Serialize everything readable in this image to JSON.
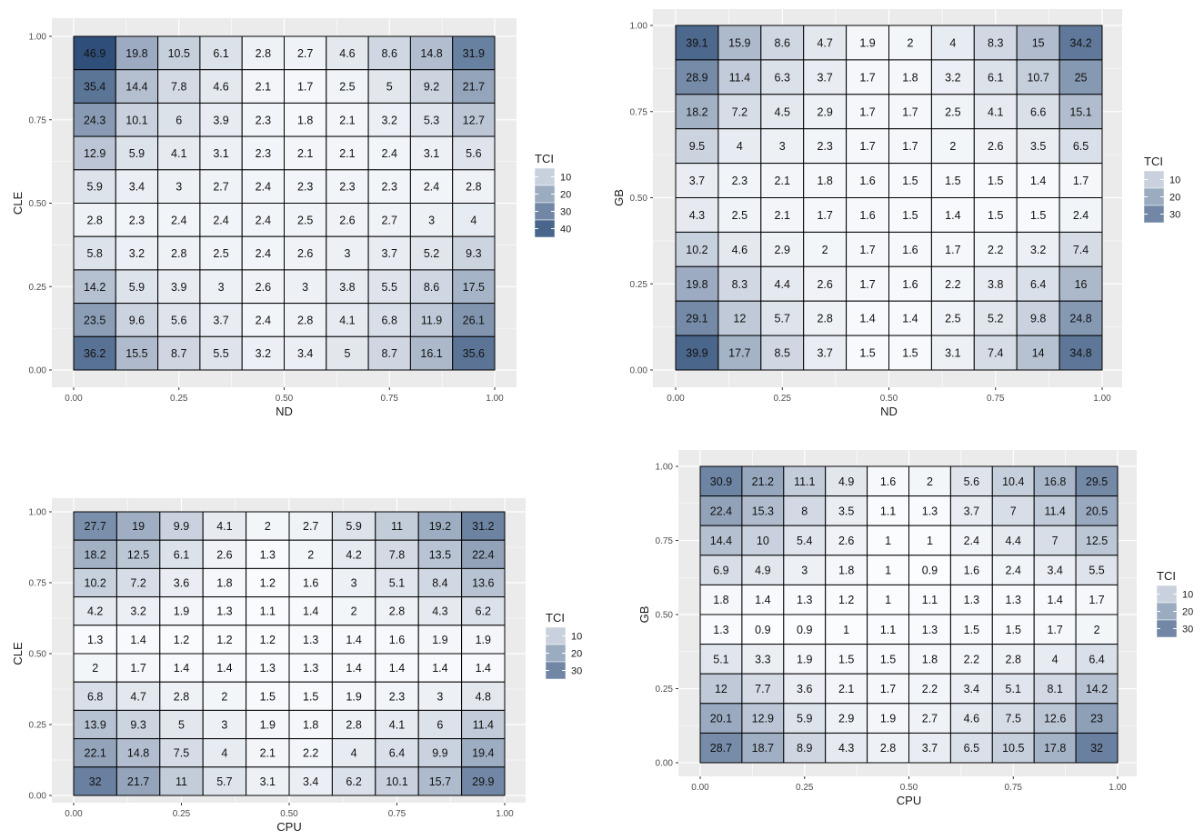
{
  "chart_data": [
    {
      "type": "heatmap",
      "xlabel": "ND",
      "ylabel": "CLE",
      "xlim": [
        0,
        1
      ],
      "ylim": [
        0,
        1
      ],
      "x_ticks": [
        "0.00",
        "0.25",
        "0.50",
        "0.75",
        "1.00"
      ],
      "y_ticks": [
        "0.00",
        "0.25",
        "0.50",
        "0.75",
        "1.00"
      ],
      "legend": {
        "title": "TCI",
        "breaks": [
          "10",
          "20",
          "30",
          "40"
        ],
        "position": "right"
      },
      "values": [
        [
          46.9,
          19.8,
          10.5,
          6.1,
          2.8,
          2.7,
          4.6,
          8.6,
          14.8,
          31.9
        ],
        [
          35.4,
          14.4,
          7.8,
          4.6,
          2.1,
          1.7,
          2.5,
          5,
          9.2,
          21.7
        ],
        [
          24.3,
          10.1,
          6,
          3.9,
          2.3,
          1.8,
          2.1,
          3.2,
          5.3,
          12.7
        ],
        [
          12.9,
          5.9,
          4.1,
          3.1,
          2.3,
          2.1,
          2.1,
          2.4,
          3.1,
          5.6
        ],
        [
          5.9,
          3.4,
          3,
          2.7,
          2.4,
          2.3,
          2.3,
          2.3,
          2.4,
          2.8
        ],
        [
          2.8,
          2.3,
          2.4,
          2.4,
          2.4,
          2.5,
          2.6,
          2.7,
          3,
          4
        ],
        [
          5.8,
          3.2,
          2.8,
          2.5,
          2.4,
          2.6,
          3,
          3.7,
          5.2,
          9.3
        ],
        [
          14.2,
          5.9,
          3.9,
          3,
          2.6,
          3,
          3.8,
          5.5,
          8.6,
          17.5
        ],
        [
          23.5,
          9.6,
          5.6,
          3.7,
          2.4,
          2.8,
          4.1,
          6.8,
          11.9,
          26.1
        ],
        [
          36.2,
          15.5,
          8.7,
          5.5,
          3.2,
          3.4,
          5,
          8.7,
          16.1,
          35.6
        ]
      ]
    },
    {
      "type": "heatmap",
      "xlabel": "ND",
      "ylabel": "GB",
      "xlim": [
        0,
        1
      ],
      "ylim": [
        0,
        1
      ],
      "x_ticks": [
        "0.00",
        "0.25",
        "0.50",
        "0.75",
        "1.00"
      ],
      "y_ticks": [
        "0.00",
        "0.25",
        "0.50",
        "0.75",
        "1.00"
      ],
      "legend": {
        "title": "TCI",
        "breaks": [
          "10",
          "20",
          "30"
        ],
        "position": "right"
      },
      "values": [
        [
          39.1,
          15.9,
          8.6,
          4.7,
          1.9,
          2,
          4,
          8.3,
          15,
          34.2
        ],
        [
          28.9,
          11.4,
          6.3,
          3.7,
          1.7,
          1.8,
          3.2,
          6.1,
          10.7,
          25
        ],
        [
          18.2,
          7.2,
          4.5,
          2.9,
          1.7,
          1.7,
          2.5,
          4.1,
          6.6,
          15.1
        ],
        [
          9.5,
          4,
          3,
          2.3,
          1.7,
          1.7,
          2,
          2.6,
          3.5,
          6.5
        ],
        [
          3.7,
          2.3,
          2.1,
          1.8,
          1.6,
          1.5,
          1.5,
          1.5,
          1.4,
          1.7
        ],
        [
          4.3,
          2.5,
          2.1,
          1.7,
          1.6,
          1.5,
          1.4,
          1.5,
          1.5,
          2.4
        ],
        [
          10.2,
          4.6,
          2.9,
          2,
          1.7,
          1.6,
          1.7,
          2.2,
          3.2,
          7.4
        ],
        [
          19.8,
          8.3,
          4.4,
          2.6,
          1.7,
          1.6,
          2.2,
          3.8,
          6.4,
          16
        ],
        [
          29.1,
          12,
          5.7,
          2.8,
          1.4,
          1.4,
          2.5,
          5.2,
          9.8,
          24.8
        ],
        [
          39.9,
          17.7,
          8.5,
          3.7,
          1.5,
          1.5,
          3.1,
          7.4,
          14,
          34.8
        ]
      ]
    },
    {
      "type": "heatmap",
      "xlabel": "CPU",
      "ylabel": "CLE",
      "xlim": [
        0,
        1
      ],
      "ylim": [
        0,
        1
      ],
      "x_ticks": [
        "0.00",
        "0.25",
        "0.50",
        "0.75",
        "1.00"
      ],
      "y_ticks": [
        "0.00",
        "0.25",
        "0.50",
        "0.75",
        "1.00"
      ],
      "legend": {
        "title": "TCI",
        "breaks": [
          "10",
          "20",
          "30"
        ],
        "position": "right"
      },
      "values": [
        [
          27.7,
          19,
          9.9,
          4.1,
          2,
          2.7,
          5.9,
          11,
          19.2,
          31.2
        ],
        [
          18.2,
          12.5,
          6.1,
          2.6,
          1.3,
          2,
          4.2,
          7.8,
          13.5,
          22.4
        ],
        [
          10.2,
          7.2,
          3.6,
          1.8,
          1.2,
          1.6,
          3,
          5.1,
          8.4,
          13.6
        ],
        [
          4.2,
          3.2,
          1.9,
          1.3,
          1.1,
          1.4,
          2,
          2.8,
          4.3,
          6.2
        ],
        [
          1.3,
          1.4,
          1.2,
          1.2,
          1.2,
          1.3,
          1.4,
          1.6,
          1.9,
          1.9
        ],
        [
          2,
          1.7,
          1.4,
          1.4,
          1.3,
          1.3,
          1.4,
          1.4,
          1.4,
          1.4
        ],
        [
          6.8,
          4.7,
          2.8,
          2,
          1.5,
          1.5,
          1.9,
          2.3,
          3,
          4.8
        ],
        [
          13.9,
          9.3,
          5,
          3,
          1.9,
          1.8,
          2.8,
          4.1,
          6,
          11.4
        ],
        [
          22.1,
          14.8,
          7.5,
          4,
          2.1,
          2.2,
          4,
          6.4,
          9.9,
          19.4
        ],
        [
          32,
          21.7,
          11,
          5.7,
          3.1,
          3.4,
          6.2,
          10.1,
          15.7,
          29.9
        ]
      ]
    },
    {
      "type": "heatmap",
      "xlabel": "CPU",
      "ylabel": "GB",
      "xlim": [
        0,
        1
      ],
      "ylim": [
        0,
        1
      ],
      "x_ticks": [
        "0.00",
        "0.25",
        "0.50",
        "0.75",
        "1.00"
      ],
      "y_ticks": [
        "0.00",
        "0.25",
        "0.50",
        "0.75",
        "1.00"
      ],
      "legend": {
        "title": "TCI",
        "breaks": [
          "10",
          "20",
          "30"
        ],
        "position": "right"
      },
      "values": [
        [
          30.9,
          21.2,
          11.1,
          4.9,
          1.6,
          2,
          5.6,
          10.4,
          16.8,
          29.5
        ],
        [
          22.4,
          15.3,
          8,
          3.5,
          1.1,
          1.3,
          3.7,
          7,
          11.4,
          20.5
        ],
        [
          14.4,
          10,
          5.4,
          2.6,
          1,
          1,
          2.4,
          4.4,
          7,
          12.5
        ],
        [
          6.9,
          4.9,
          3,
          1.8,
          1,
          0.9,
          1.6,
          2.4,
          3.4,
          5.5
        ],
        [
          1.8,
          1.4,
          1.3,
          1.2,
          1,
          1.1,
          1.3,
          1.3,
          1.4,
          1.7
        ],
        [
          1.3,
          0.9,
          0.9,
          1,
          1.1,
          1.3,
          1.5,
          1.5,
          1.7,
          2
        ],
        [
          5.1,
          3.3,
          1.9,
          1.5,
          1.5,
          1.8,
          2.2,
          2.8,
          4,
          6.4
        ],
        [
          12,
          7.7,
          3.6,
          2.1,
          1.7,
          2.2,
          3.4,
          5.1,
          8.1,
          14.2
        ],
        [
          20.1,
          12.9,
          5.9,
          2.9,
          1.9,
          2.7,
          4.6,
          7.5,
          12.6,
          23
        ],
        [
          28.7,
          18.7,
          8.9,
          4.3,
          2.8,
          3.7,
          6.5,
          10.5,
          17.8,
          32
        ]
      ]
    }
  ]
}
